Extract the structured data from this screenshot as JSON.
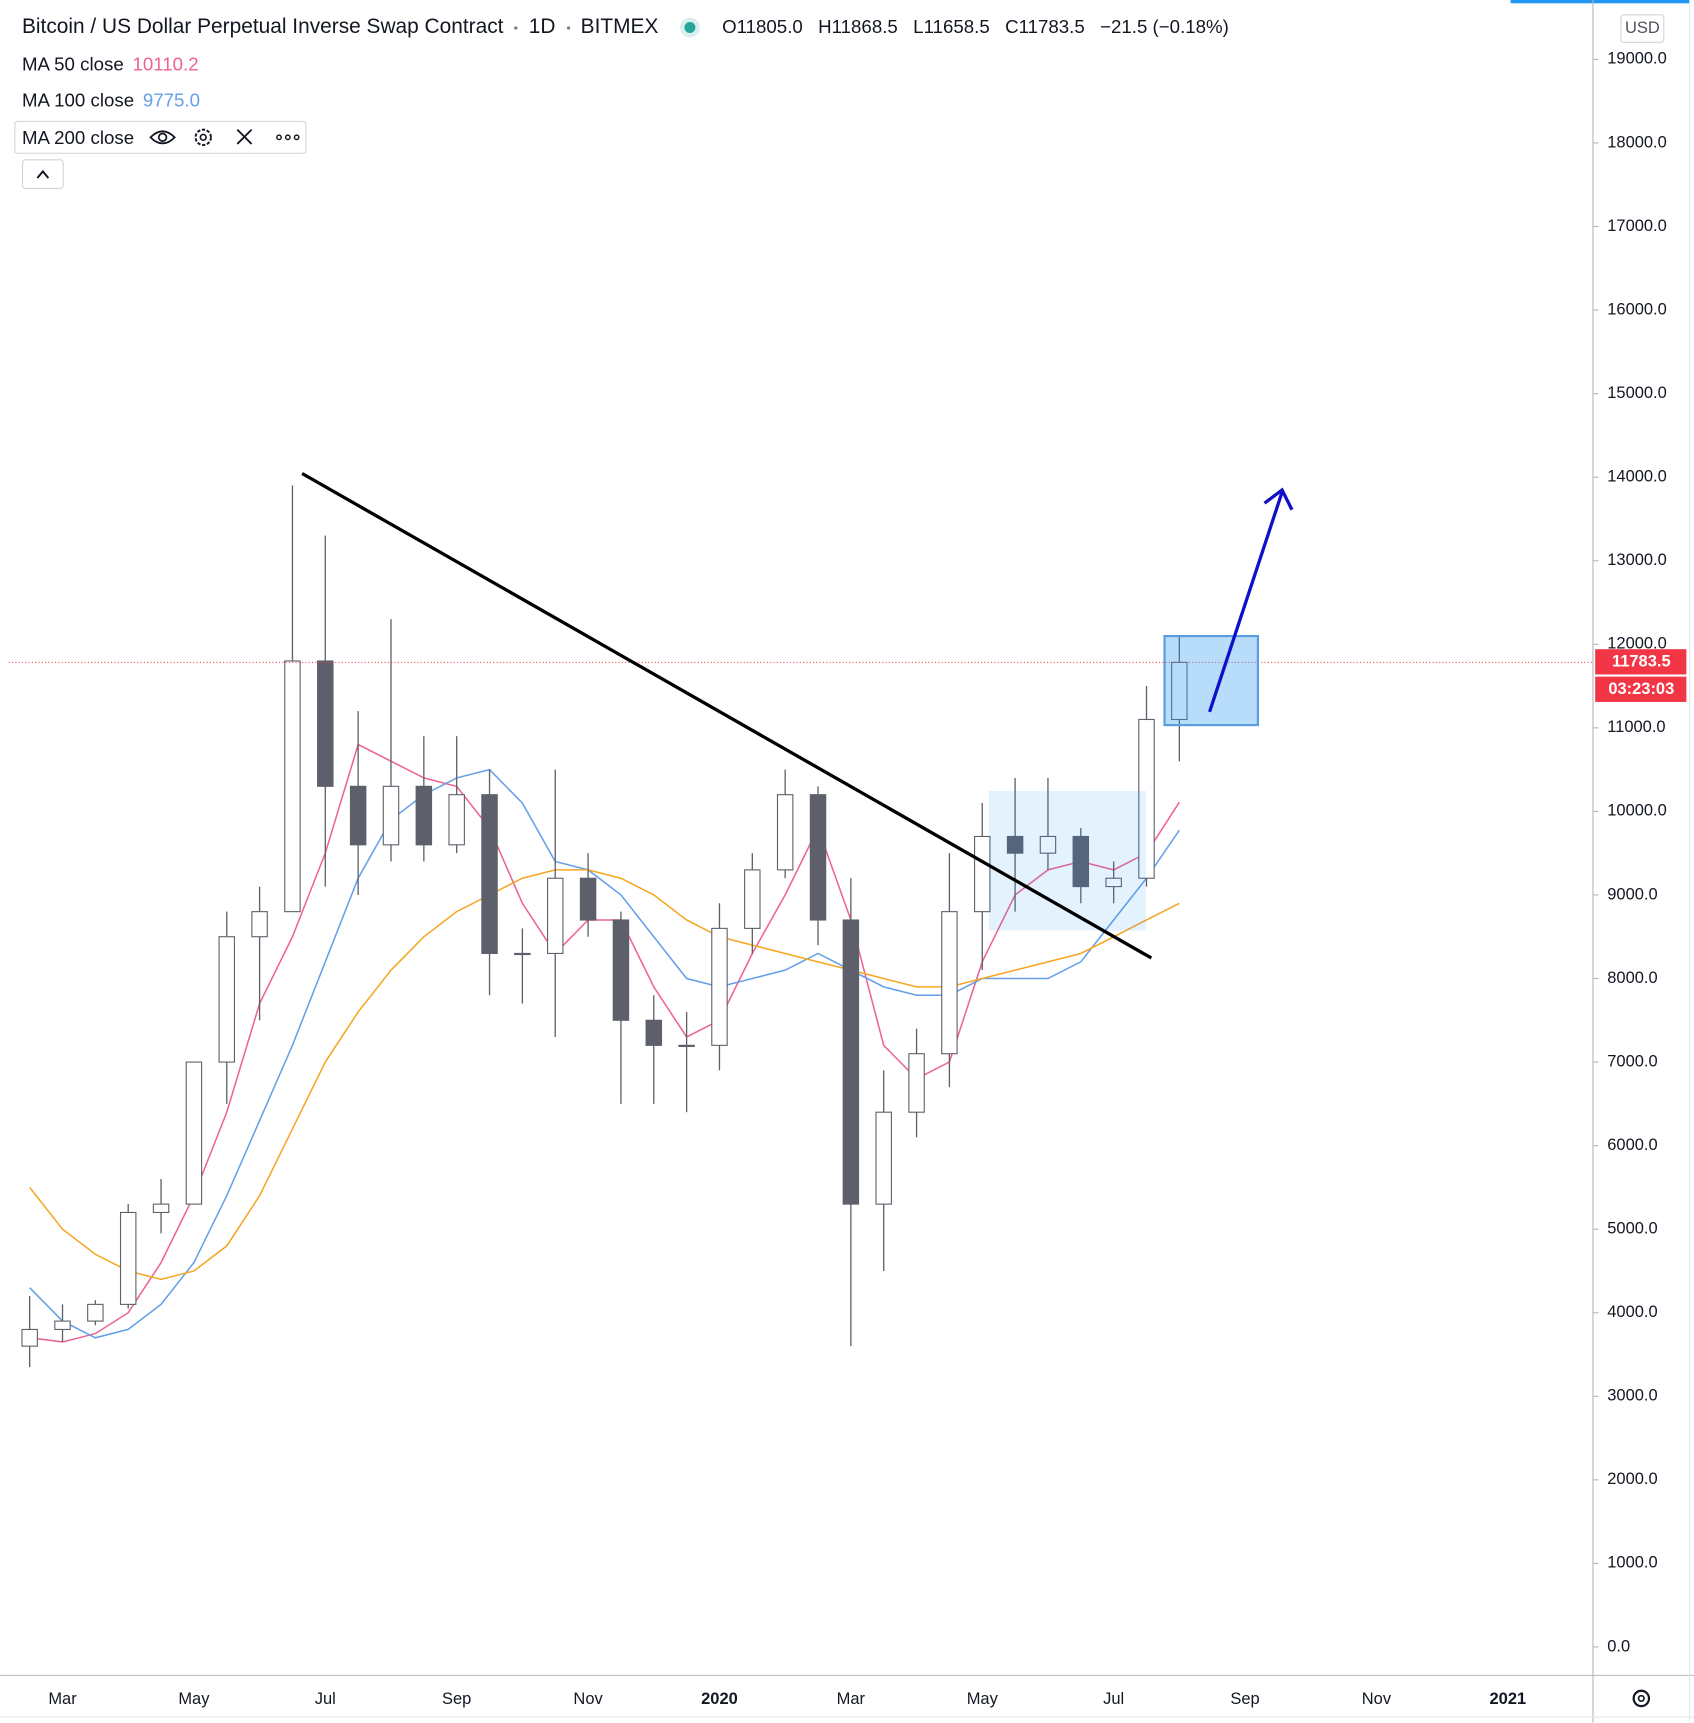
{
  "chart_data": {
    "type": "candlestick",
    "title": "Bitcoin / US Dollar Perpetual Inverse Swap Contract",
    "interval": "1D",
    "exchange": "BITMEX",
    "ohlc_header": [
      {
        "key": "O",
        "value": "11805.0"
      },
      {
        "key": "H",
        "value": "11868.5"
      },
      {
        "key": "L",
        "value": "11658.5"
      },
      {
        "key": "C",
        "value": "11783.5"
      }
    ],
    "change": "−21.5 (−0.18%)",
    "currency": "USD",
    "countdown": "03:23:03",
    "categories": [
      null,
      "Mar",
      null,
      null,
      null,
      "May",
      null,
      null,
      null,
      "Jul",
      null,
      null,
      null,
      "Sep",
      null,
      null,
      null,
      "Nov",
      null,
      null,
      null,
      "2020",
      null,
      null,
      null,
      "Mar",
      null,
      null,
      null,
      "May",
      null,
      null,
      null,
      "Jul",
      null,
      null,
      null,
      "Sep",
      null,
      null,
      null,
      "Nov",
      null,
      null,
      null,
      "2021",
      null
    ],
    "open": [
      3600,
      3800,
      3900,
      4100,
      5200,
      5300,
      7000,
      8500,
      8800,
      11800,
      10300,
      9600,
      10300,
      9600,
      10200,
      8300,
      8300,
      9200,
      8700,
      7500,
      7200,
      7200,
      8600,
      9300,
      10200,
      8700,
      5300,
      6400,
      7100,
      8800,
      9700,
      9500,
      9700,
      9100,
      9200,
      11100,
      null,
      null,
      null,
      null,
      null,
      null,
      null,
      null,
      null,
      null,
      null
    ],
    "high": [
      4200,
      4100,
      4150,
      5300,
      5600,
      7000,
      8800,
      9100,
      13900,
      13300,
      11200,
      12300,
      10900,
      10900,
      10500,
      8600,
      10500,
      9500,
      8800,
      7800,
      7600,
      8900,
      9500,
      10500,
      10300,
      9200,
      6900,
      7400,
      9500,
      10100,
      10400,
      10400,
      9800,
      9400,
      11500,
      12100,
      null,
      null,
      null,
      null,
      null,
      null,
      null,
      null,
      null,
      null,
      null
    ],
    "low": [
      3350,
      3650,
      3850,
      4050,
      4950,
      5300,
      6500,
      7500,
      8800,
      9100,
      9000,
      9400,
      9400,
      9500,
      7800,
      7700,
      7300,
      8500,
      6500,
      6500,
      6400,
      6900,
      8300,
      9200,
      8400,
      3600,
      4500,
      6100,
      6700,
      8100,
      8800,
      9300,
      8900,
      8900,
      9100,
      10600,
      null,
      null,
      null,
      null,
      null,
      null,
      null,
      null,
      null,
      null,
      null
    ],
    "close": [
      3800,
      3900,
      4100,
      5200,
      5300,
      7000,
      8500,
      8800,
      11800,
      10300,
      9600,
      10300,
      9600,
      10200,
      8300,
      8300,
      9200,
      8700,
      7500,
      7200,
      7200,
      8600,
      9300,
      10200,
      8700,
      5300,
      6400,
      7100,
      8800,
      9700,
      9500,
      9700,
      9100,
      9200,
      11100,
      11783.5,
      null,
      null,
      null,
      null,
      null,
      null,
      null,
      null,
      null,
      null,
      null
    ],
    "candle_colors": {
      "up": "#ffffff",
      "down": "#5d606b",
      "outline": "#5d606b"
    },
    "price_line_color": "#f23645",
    "ma_series": [
      {
        "name": "MA 50 close",
        "color": "#f06292",
        "value_label": "10110.2",
        "values": [
          3700,
          3650,
          3750,
          4000,
          4600,
          5400,
          6400,
          7700,
          8500,
          9500,
          10800,
          10600,
          10400,
          10300,
          9800,
          8900,
          8300,
          8700,
          8700,
          7900,
          7300,
          7500,
          8300,
          9000,
          9800,
          8700,
          7200,
          6800,
          7000,
          8200,
          9000,
          9300,
          9400,
          9300,
          9500,
          10110.2,
          null,
          null,
          null,
          null,
          null,
          null,
          null,
          null,
          null,
          null,
          null
        ]
      },
      {
        "name": "MA 100 close",
        "color": "#64a0e8",
        "value_label": "9775.0",
        "values": [
          4300,
          3900,
          3700,
          3800,
          4100,
          4600,
          5400,
          6300,
          7200,
          8200,
          9200,
          9900,
          10200,
          10400,
          10500,
          10100,
          9400,
          9300,
          9000,
          8500,
          8000,
          7900,
          8000,
          8100,
          8300,
          8100,
          7900,
          7800,
          7800,
          8000,
          8000,
          8000,
          8200,
          8700,
          9200,
          9775.0,
          null,
          null,
          null,
          null,
          null,
          null,
          null,
          null,
          null,
          null,
          null
        ]
      },
      {
        "name": "MA 200 close",
        "color": "#f5a623",
        "values": [
          5500,
          5000,
          4700,
          4500,
          4400,
          4500,
          4800,
          5400,
          6200,
          7000,
          7600,
          8100,
          8500,
          8800,
          9000,
          9200,
          9300,
          9300,
          9200,
          9000,
          8700,
          8500,
          8400,
          8300,
          8200,
          8100,
          8000,
          7900,
          7900,
          8000,
          8100,
          8200,
          8300,
          8500,
          8700,
          8900,
          null,
          null,
          null,
          null,
          null,
          null,
          null,
          null,
          null,
          null,
          null
        ]
      }
    ],
    "ylim": [
      -340,
      19645
    ],
    "yticks": [
      {
        "value": 0,
        "label": "0.0"
      },
      {
        "value": 1000,
        "label": "1000.0"
      },
      {
        "value": 2000,
        "label": "2000.0"
      },
      {
        "value": 3000,
        "label": "3000.0"
      },
      {
        "value": 4000,
        "label": "4000.0"
      },
      {
        "value": 5000,
        "label": "5000.0"
      },
      {
        "value": 6000,
        "label": "6000.0"
      },
      {
        "value": 7000,
        "label": "7000.0"
      },
      {
        "value": 8000,
        "label": "8000.0"
      },
      {
        "value": 9000,
        "label": "9000.0"
      },
      {
        "value": 10000,
        "label": "10000.0"
      },
      {
        "value": 11000,
        "label": "11000.0"
      },
      {
        "value": 12000,
        "label": "12000.0"
      },
      {
        "value": 13000,
        "label": "13000.0"
      },
      {
        "value": 14000,
        "label": "14000.0"
      },
      {
        "value": 15000,
        "label": "15000.0"
      },
      {
        "value": 16000,
        "label": "16000.0"
      },
      {
        "value": 17000,
        "label": "17000.0"
      },
      {
        "value": 18000,
        "label": "18000.0"
      },
      {
        "value": 19000,
        "label": "19000.0"
      }
    ],
    "grid": false
  }
}
